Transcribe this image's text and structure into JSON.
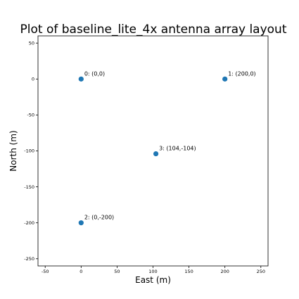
{
  "chart_data": {
    "type": "scatter",
    "title": "Plot of baseline_lite_4x antenna array layout",
    "xlabel": "East (m)",
    "ylabel": "North (m)",
    "xlim": [
      -60,
      260
    ],
    "ylim": [
      -260,
      60
    ],
    "xticks": [
      -50,
      0,
      50,
      100,
      150,
      200,
      250
    ],
    "yticks": [
      50,
      0,
      -50,
      -100,
      -150,
      -200,
      -250
    ],
    "grid": false,
    "marker_color": "#1f77b4",
    "points": [
      {
        "x": 0,
        "y": 0,
        "label": "0: (0,0)"
      },
      {
        "x": 200,
        "y": 0,
        "label": "1: (200,0)"
      },
      {
        "x": 0,
        "y": -200,
        "label": "2: (0,-200)"
      },
      {
        "x": 104,
        "y": -104,
        "label": "3: (104,-104)"
      }
    ]
  }
}
